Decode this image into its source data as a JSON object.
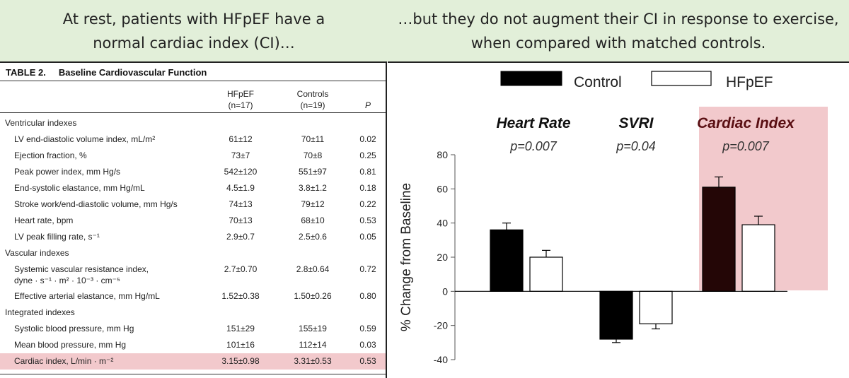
{
  "banner": {
    "left_line1": "At rest, patients with HFpEF have a",
    "left_line2": "normal cardiac index (CI)…",
    "right_line1": "…but they do not augment their CI in response to exercise,",
    "right_line2": "when compared with matched controls."
  },
  "table": {
    "title_number": "TABLE 2.",
    "title_text": "Baseline Cardiovascular Function",
    "col_hfpef": "HFpEF",
    "col_hfpef_n": "(n=17)",
    "col_controls": "Controls",
    "col_controls_n": "(n=19)",
    "col_p": "P",
    "rows": [
      {
        "type": "section",
        "label": "Ventricular indexes"
      },
      {
        "type": "data",
        "label": "LV end-diastolic volume index, mL/m²",
        "hfpef": "61±12",
        "controls": "70±11",
        "p": "0.02"
      },
      {
        "type": "data",
        "label": "Ejection fraction, %",
        "hfpef": "73±7",
        "controls": "70±8",
        "p": "0.25"
      },
      {
        "type": "data",
        "label": "Peak power index, mm Hg/s",
        "hfpef": "542±120",
        "controls": "551±97",
        "p": "0.81"
      },
      {
        "type": "data",
        "label": "End-systolic elastance, mm Hg/mL",
        "hfpef": "4.5±1.9",
        "controls": "3.8±1.2",
        "p": "0.18"
      },
      {
        "type": "data",
        "label": "Stroke work/end-diastolic volume, mm Hg/s",
        "hfpef": "74±13",
        "controls": "79±12",
        "p": "0.22"
      },
      {
        "type": "data",
        "label": "Heart rate, bpm",
        "hfpef": "70±13",
        "controls": "68±10",
        "p": "0.53"
      },
      {
        "type": "data",
        "label": "LV peak filling rate, s⁻¹",
        "hfpef": "2.9±0.7",
        "controls": "2.5±0.6",
        "p": "0.05"
      },
      {
        "type": "section",
        "label": "Vascular indexes"
      },
      {
        "type": "data2",
        "label": "Systemic vascular resistance index,",
        "label2": "dyne · s⁻¹ · m² · 10⁻³ · cm⁻⁵",
        "hfpef": "2.7±0.70",
        "controls": "2.8±0.64",
        "p": "0.72"
      },
      {
        "type": "data",
        "label": "Effective arterial elastance, mm Hg/mL",
        "hfpef": "1.52±0.38",
        "controls": "1.50±0.26",
        "p": "0.80"
      },
      {
        "type": "section",
        "label": "Integrated indexes"
      },
      {
        "type": "data",
        "label": "Systolic blood pressure, mm Hg",
        "hfpef": "151±29",
        "controls": "155±19",
        "p": "0.59"
      },
      {
        "type": "data",
        "label": "Mean blood pressure, mm Hg",
        "hfpef": "101±16",
        "controls": "112±14",
        "p": "0.03"
      },
      {
        "type": "highlight",
        "label": "Cardiac index, L/min · m⁻²",
        "hfpef": "3.15±0.98",
        "controls": "3.31±0.53",
        "p": "0.53"
      }
    ]
  },
  "chart_data": {
    "type": "bar",
    "ylabel": "% Change from Baseline",
    "ylim": [
      -40,
      80
    ],
    "yticks": [
      "80",
      "60",
      "40",
      "20",
      "0",
      "-20",
      "-40"
    ],
    "grid": false,
    "legend_position": "top",
    "legend": [
      "Control",
      "HFpEF"
    ],
    "groups": [
      {
        "title": "Heart Rate",
        "pvalue": "p=0.007",
        "highlighted": false
      },
      {
        "title": "SVRI",
        "pvalue": "p=0.04",
        "highlighted": false
      },
      {
        "title": "Cardiac Index",
        "pvalue": "p=0.007",
        "highlighted": true
      }
    ],
    "series": [
      {
        "name": "Control",
        "values": [
          36,
          -28,
          61
        ],
        "errors": [
          4,
          2,
          6
        ],
        "color": "#000000"
      },
      {
        "name": "HFpEF",
        "values": [
          20,
          -19,
          39
        ],
        "errors": [
          4,
          3,
          5
        ],
        "color": "#ffffff"
      }
    ],
    "highlight_color": "#f2c9cc",
    "highlight_text_color": "#5a0f13"
  }
}
